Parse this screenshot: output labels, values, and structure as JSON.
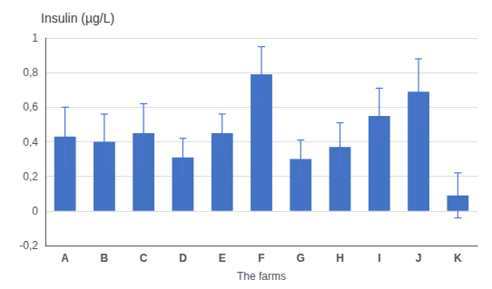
{
  "chart_data": {
    "type": "bar",
    "title": "Insulin (µg/L)",
    "xlabel": "The farms",
    "categories": [
      "A",
      "B",
      "C",
      "D",
      "E",
      "F",
      "G",
      "H",
      "I",
      "J",
      "K"
    ],
    "values": [
      0.43,
      0.4,
      0.45,
      0.31,
      0.45,
      0.79,
      0.3,
      0.37,
      0.55,
      0.69,
      0.09
    ],
    "errors": [
      0.17,
      0.16,
      0.17,
      0.11,
      0.11,
      0.16,
      0.11,
      0.14,
      0.16,
      0.19,
      0.13
    ],
    "color": "#4472C4",
    "ylim": [
      -0.2,
      1.0
    ],
    "yticks": [
      {
        "value": -0.2,
        "label": "-0,2"
      },
      0,
      {
        "value": 0.2,
        "label": "0,2"
      },
      {
        "value": 0.4,
        "label": "0,4"
      },
      {
        "value": 0.6,
        "label": "0,6"
      },
      {
        "value": 0.8,
        "label": "0,8"
      },
      1
    ],
    "grid": true
  }
}
